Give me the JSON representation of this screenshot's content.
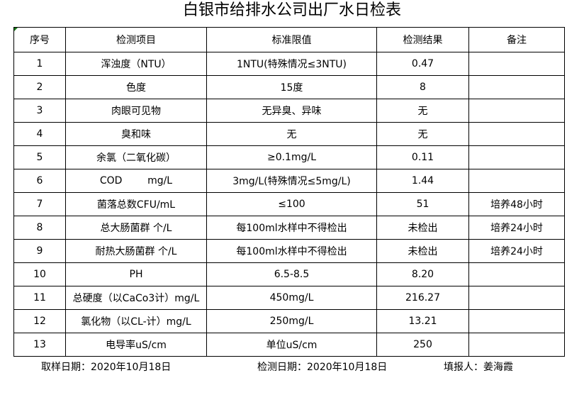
{
  "title": "白银市给排水公司出厂水日检表",
  "headers": [
    "序号",
    "检测项目",
    "标准限值",
    "检测结果",
    "备注"
  ],
  "rows": [
    [
      "1",
      "浑浊度（NTU）",
      "1NTU(特殊情况≤3NTU)",
      "0.47",
      ""
    ],
    [
      "2",
      "色度",
      "15度",
      "8",
      ""
    ],
    [
      "3",
      "肉眼可见物",
      "无异臭、异味",
      "无",
      ""
    ],
    [
      "4",
      "臭和味",
      "无",
      "无",
      ""
    ],
    [
      "5",
      "余氯（二氧化碳）",
      "≥0.1mg/L",
      "0.11",
      ""
    ],
    [
      "6",
      "COD        mg/L",
      "3mg/L(特殊情况≤5mg/L)",
      "1.44",
      ""
    ],
    [
      "7",
      "菌落总数CFU/mL",
      "≤100",
      "51",
      "培养48小时"
    ],
    [
      "8",
      "总大肠菌群 个/L",
      "每100ml水样中不得检出",
      "未检出",
      "培养24小时"
    ],
    [
      "9",
      "耐热大肠菌群 个/L",
      "每100ml水样中不得检出",
      "未检出",
      "培养24小时"
    ],
    [
      "10",
      "PH",
      "6.5-8.5",
      "8.20",
      ""
    ],
    [
      "11",
      "总硬度（以CaCo3计）mg/L",
      "450mg/L",
      "216.27",
      ""
    ],
    [
      "12",
      "氯化物（以CL-计）mg/L",
      "250mg/L",
      "13.21",
      ""
    ],
    [
      "13",
      "电导率uS/cm",
      "单位uS/cm",
      "250",
      ""
    ]
  ],
  "footer": {
    "sampling_date": "取样日期：2020年10月18日",
    "test_date": "检测日期：2020年10月18日",
    "filled_by": "填报人：姜海霞"
  }
}
